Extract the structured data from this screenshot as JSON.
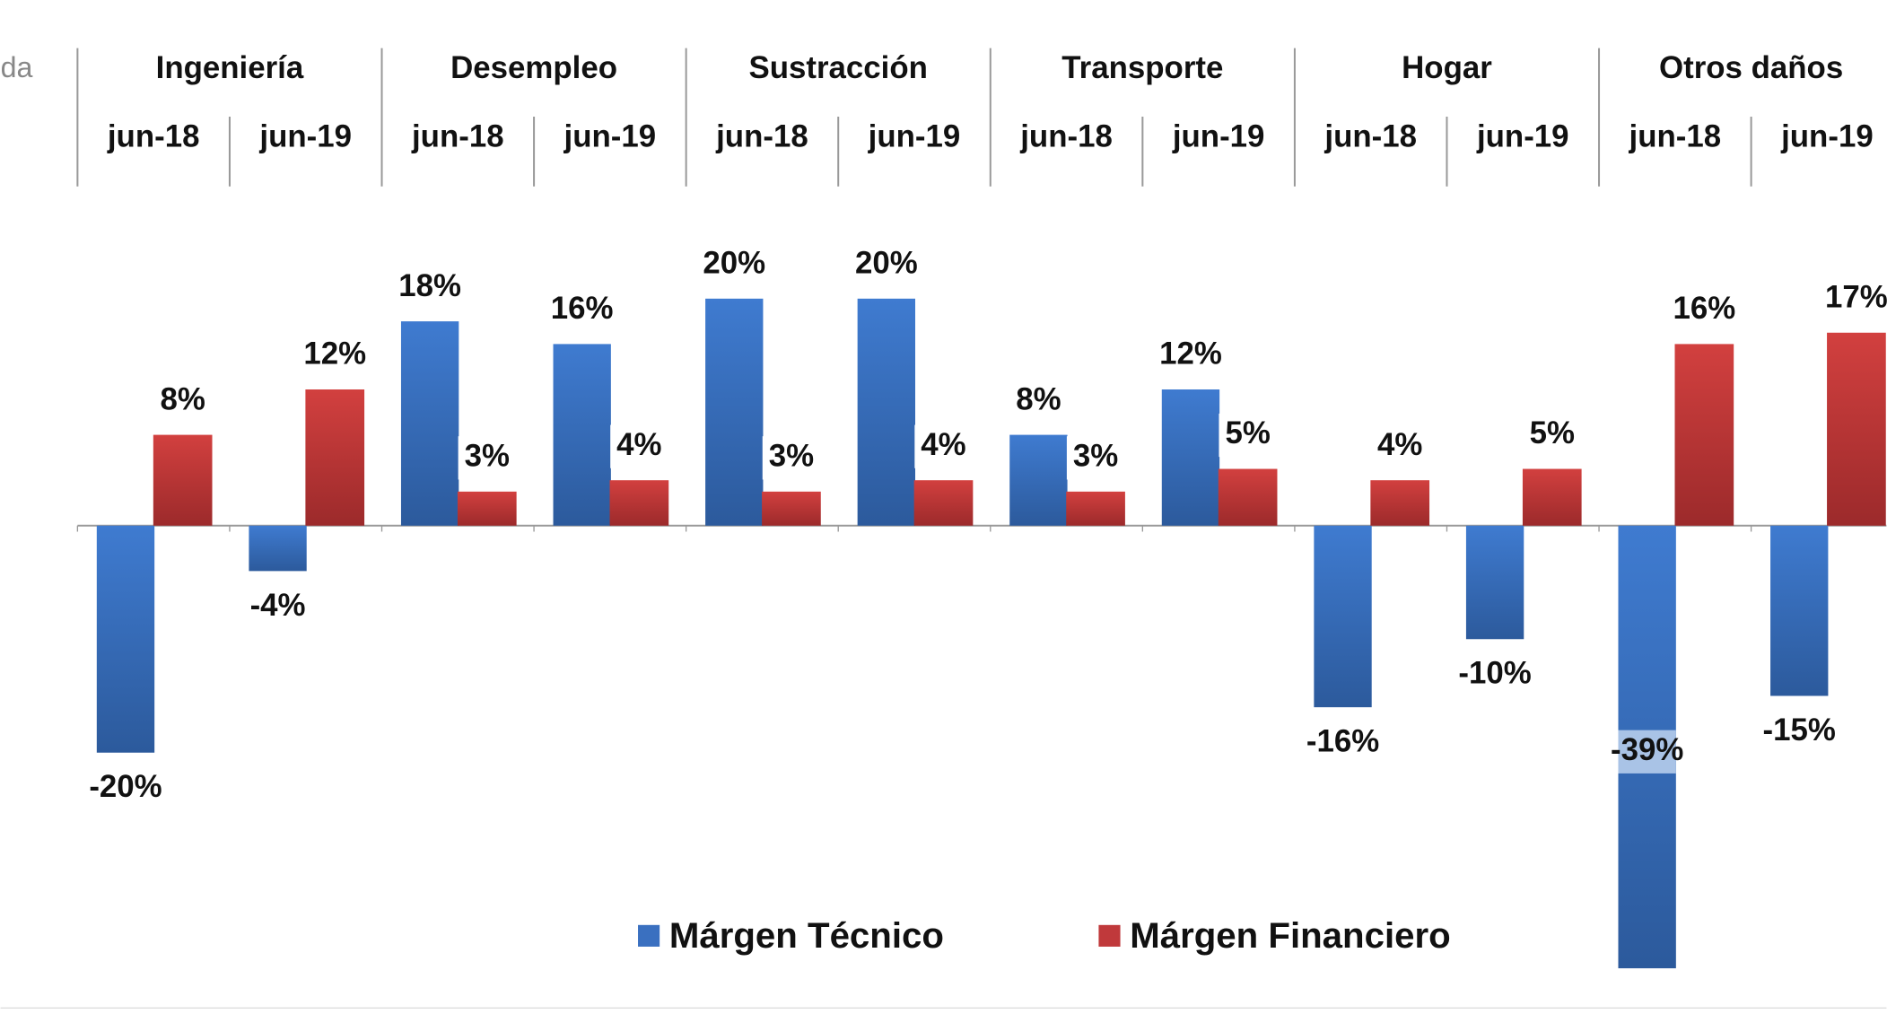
{
  "chart_data": {
    "type": "bar",
    "partial_label": "da",
    "groups": [
      "Ingeniería",
      "Desempleo",
      "Sustracción",
      "Transporte",
      "Hogar",
      "Otros daños"
    ],
    "categories": [
      "jun-18",
      "jun-19",
      "jun-18",
      "jun-19",
      "jun-18",
      "jun-19",
      "jun-18",
      "jun-19",
      "jun-18",
      "jun-19",
      "jun-18",
      "jun-19"
    ],
    "series": [
      {
        "name": "Márgen Técnico",
        "color": "#3a70c0",
        "values": [
          -20,
          -4,
          18,
          16,
          20,
          20,
          8,
          12,
          -16,
          -10,
          -39,
          -15
        ],
        "value_labels": [
          "-20%",
          "-4%",
          "18%",
          "16%",
          "20%",
          "20%",
          "8%",
          "12%",
          "-16%",
          "-10%",
          "-39%",
          "-15%"
        ]
      },
      {
        "name": "Márgen Financiero",
        "color": "#c0393b",
        "values": [
          8,
          12,
          3,
          4,
          3,
          4,
          3,
          5,
          4,
          5,
          16,
          17
        ],
        "value_labels": [
          "8%",
          "12%",
          "3%",
          "4%",
          "3%",
          "4%",
          "3%",
          "5%",
          "4%",
          "5%",
          "16%",
          "17%"
        ]
      }
    ]
  }
}
